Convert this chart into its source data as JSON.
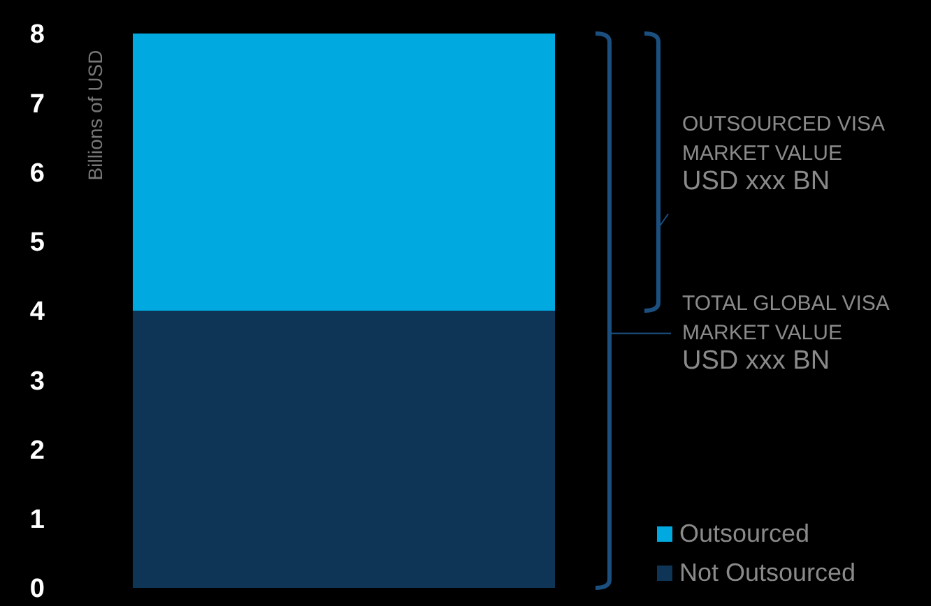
{
  "chart_data": {
    "type": "bar",
    "stacked": true,
    "categories": [
      null
    ],
    "ylabel": "Billions of USD",
    "series": [
      {
        "name": "Not Outsourced",
        "color": "#0e3556",
        "values": [
          4
        ]
      },
      {
        "name": "Outsourced",
        "color": "#00a9e0",
        "values": [
          4
        ]
      }
    ],
    "ylim": [
      0,
      8
    ],
    "yticks": [
      0,
      1,
      2,
      3,
      4,
      5,
      6,
      7,
      8
    ],
    "grid": false,
    "legend": "bottom right",
    "annotations": [
      "OUTSOURCED VISA\nMARKET VALUE\nUSD xxx BN",
      "TOTAL GLOBAL VISA\nMARKET VALUE\nUSD xxx BN"
    ]
  }
}
